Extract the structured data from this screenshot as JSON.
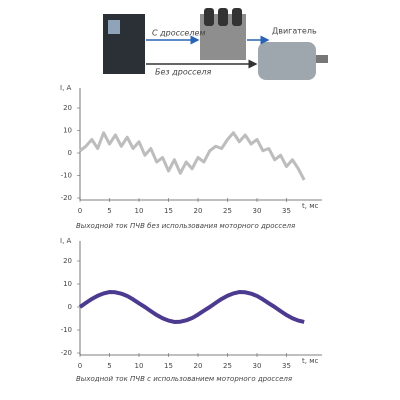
{
  "diagram": {
    "with_choke": "С дросселем",
    "without_choke": "Без дросселя",
    "motor": "Двигатель"
  },
  "chart_data": [
    {
      "type": "line",
      "ylabel": "I, A",
      "xlabel": "t, мс",
      "caption": "Выходной ток ПЧВ без использования моторного дросселя",
      "x": [
        0,
        1,
        2,
        3,
        4,
        5,
        6,
        7,
        8,
        9,
        10,
        11,
        12,
        13,
        14,
        15,
        16,
        17,
        18,
        19,
        20,
        21,
        22,
        23,
        24,
        25,
        26,
        27,
        28,
        29,
        30,
        31,
        32,
        33,
        34,
        35,
        36,
        37,
        38
      ],
      "values": [
        1,
        3,
        6,
        2,
        9,
        4,
        8,
        3,
        7,
        2,
        5,
        -1,
        2,
        -4,
        -2,
        -8,
        -3,
        -9,
        -4,
        -7,
        -2,
        -4,
        1,
        3,
        2,
        6,
        9,
        5,
        8,
        4,
        6,
        1,
        2,
        -3,
        -1,
        -6,
        -3,
        -7,
        -12
      ],
      "color": "#bdbdbd",
      "xlim": [
        0,
        40
      ],
      "ylim": [
        -20,
        20
      ],
      "xticks": [
        0,
        5,
        10,
        15,
        20,
        25,
        30,
        35
      ],
      "yticks": [
        -20,
        -10,
        0,
        10,
        20
      ]
    },
    {
      "type": "line",
      "ylabel": "I, A",
      "xlabel": "t, мс",
      "caption": "Выходной ток ПЧВ с использованием моторного дросселя",
      "x": [
        0,
        1,
        2,
        3,
        4,
        5,
        6,
        7,
        8,
        9,
        10,
        11,
        12,
        13,
        14,
        15,
        16,
        17,
        18,
        19,
        20,
        21,
        22,
        23,
        24,
        25,
        26,
        27,
        28,
        29,
        30,
        31,
        32,
        33,
        34,
        35,
        36,
        37,
        38
      ],
      "values": [
        0,
        1.8,
        3.5,
        4.9,
        5.9,
        6.5,
        6.4,
        5.8,
        4.8,
        3.3,
        1.6,
        0,
        -1.8,
        -3.5,
        -4.9,
        -5.9,
        -6.5,
        -6.4,
        -5.8,
        -4.8,
        -3.3,
        -1.6,
        0,
        1.8,
        3.5,
        4.9,
        5.9,
        6.5,
        6.4,
        5.8,
        4.8,
        3.3,
        1.6,
        0,
        -1.8,
        -3.5,
        -4.9,
        -5.9,
        -6.5
      ],
      "color": "#4b3a8f",
      "xlim": [
        0,
        40
      ],
      "ylim": [
        -20,
        20
      ],
      "xticks": [
        0,
        5,
        10,
        15,
        20,
        25,
        30,
        35
      ],
      "yticks": [
        -20,
        -10,
        0,
        10,
        20
      ]
    }
  ]
}
